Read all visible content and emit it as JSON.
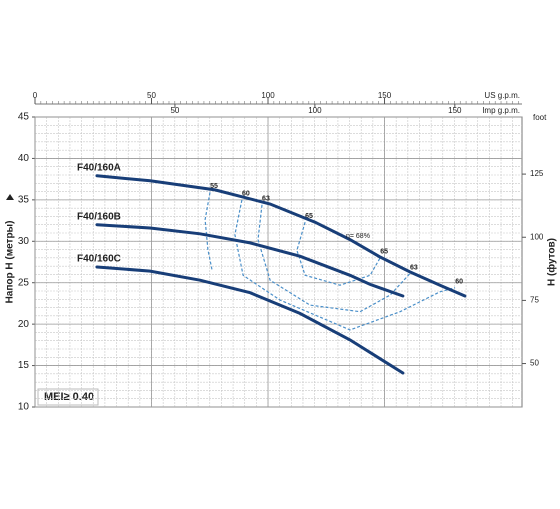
{
  "chart_data": {
    "type": "line",
    "ylabel": "Напор H (метры)",
    "y2label": "H (футов)",
    "y2unit": "foot",
    "xlabel": "US g.p.m.",
    "x2label": "Imp g.p.m.",
    "xlim": [
      0,
      209
    ],
    "xticks": [
      0,
      50,
      100,
      150
    ],
    "x2lim": [
      0,
      174
    ],
    "x2ticks": [
      50,
      100,
      150
    ],
    "ylim": [
      10,
      45
    ],
    "yticks": [
      10,
      15,
      20,
      25,
      30,
      35,
      40,
      45
    ],
    "y2lim": [
      32.8,
      147.6
    ],
    "y2ticks": [
      50,
      75,
      100,
      125
    ],
    "grid": true,
    "series": [
      {
        "name": "F40/160A",
        "color": "#183e78",
        "x": [
          26.6,
          49.4,
          77.3,
          100.9,
          120.2,
          135.2,
          148.1,
          160.9,
          173.8,
          184.5
        ],
        "values": [
          37.9,
          37.3,
          36.2,
          34.5,
          32.3,
          30.2,
          28.1,
          26.3,
          24.7,
          23.4
        ]
      },
      {
        "name": "F40/160B",
        "color": "#183e78",
        "x": [
          26.6,
          49.4,
          70.8,
          92.3,
          113.7,
          135.2,
          143.8,
          157.9
        ],
        "values": [
          32.0,
          31.6,
          30.9,
          29.8,
          28.2,
          25.9,
          24.8,
          23.4
        ]
      },
      {
        "name": "F40/160C",
        "color": "#183e78",
        "x": [
          26.6,
          49.4,
          70.8,
          92.3,
          113.7,
          135.2,
          157.9
        ],
        "values": [
          26.9,
          26.4,
          25.3,
          23.8,
          21.3,
          18.1,
          14.1
        ]
      }
    ],
    "efficiency": {
      "color": "#4a8fc9",
      "series": [
        {
          "label": "55",
          "x": [
            75.1,
            73.0,
            74.2,
            76.0
          ],
          "values": [
            35.9,
            32.6,
            29.0,
            26.5
          ]
        },
        {
          "label": "60",
          "end_label": "60",
          "x": [
            88.8,
            85.8,
            89.3,
            105.2,
            135.2,
            156.7,
            173.8,
            180.3
          ],
          "values": [
            35.0,
            30.8,
            25.9,
            22.9,
            19.3,
            21.5,
            23.9,
            24.4
          ]
        },
        {
          "label": "63",
          "end_label": "63",
          "x": [
            97.4,
            95.7,
            100.9,
            118.0,
            139.5,
            152.4,
            160.9
          ],
          "values": [
            34.4,
            30.2,
            25.3,
            22.3,
            21.5,
            23.5,
            26.1
          ]
        },
        {
          "label": "65",
          "end_label": "65",
          "x": [
            115.9,
            112.4,
            115.9,
            130.9,
            143.8,
            148.1
          ],
          "values": [
            32.3,
            28.9,
            25.9,
            24.7,
            25.9,
            28.0
          ]
        }
      ]
    },
    "annotation": {
      "text": "η= 68%",
      "x": 138.6,
      "y": 30.6
    },
    "badge": "MEI≥ 0.40"
  }
}
